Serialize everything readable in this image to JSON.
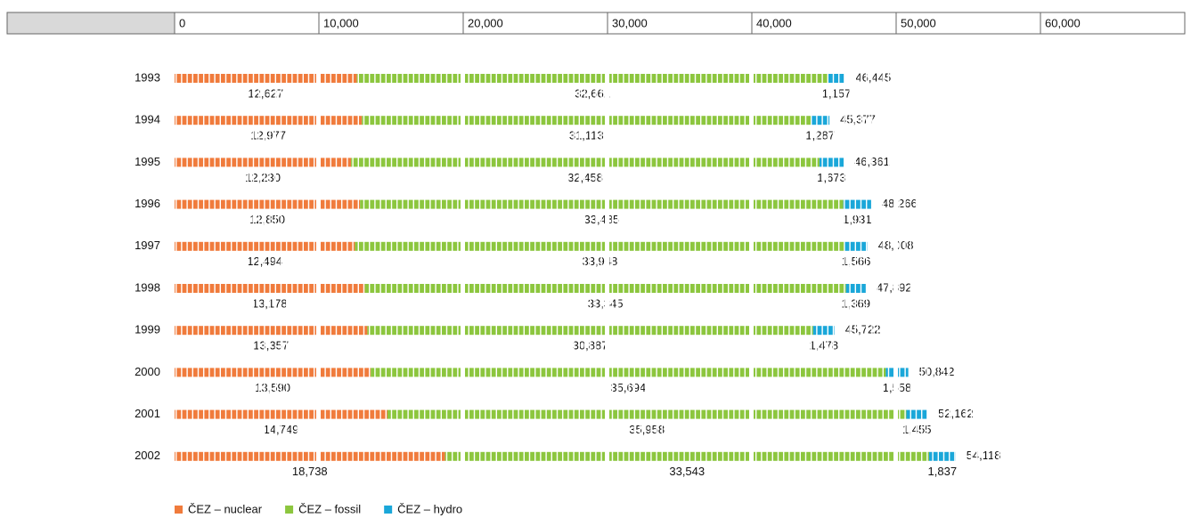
{
  "chart_data": {
    "type": "stacked-bar-horizontal",
    "categories": [
      "1993",
      "1994",
      "1995",
      "1996",
      "1997",
      "1998",
      "1999",
      "2000",
      "2001",
      "2002"
    ],
    "series": [
      {
        "name": "ČEZ – nuclear",
        "color": "#f07b3c",
        "values": [
          12627,
          12977,
          12230,
          12850,
          12494,
          13178,
          13357,
          13590,
          14749,
          18738
        ],
        "value_labels": [
          "12,627",
          "12,977",
          "12,230",
          "12,850",
          "12,494",
          "13,178",
          "13,357",
          "13,590",
          "14,749",
          "18,738"
        ]
      },
      {
        "name": "ČEZ – fossil",
        "color": "#8cc63e",
        "values": [
          32661,
          31113,
          32458,
          33485,
          33948,
          33345,
          30887,
          35694,
          35958,
          33543
        ],
        "value_labels": [
          "32,661",
          "31,113",
          "32,458",
          "33,485",
          "33,948",
          "33,345",
          "30,887",
          "35,694",
          "35,958",
          "33,543"
        ]
      },
      {
        "name": "ČEZ – hydro",
        "color": "#1aa7d9",
        "values": [
          1157,
          1287,
          1673,
          1931,
          1566,
          1369,
          1478,
          1558,
          1455,
          1837
        ],
        "value_labels": [
          "1,157",
          "1,287",
          "1,673",
          "1,931",
          "1,566",
          "1,369",
          "1,478",
          "1,558",
          "1,455",
          "1,837"
        ]
      }
    ],
    "totals": [
      46445,
      45377,
      46361,
      48266,
      48008,
      47892,
      45722,
      50842,
      52162,
      54118
    ],
    "total_labels": [
      "46,445",
      "45,377",
      "46,361",
      "48,266",
      "48,008",
      "47,892",
      "45,722",
      "50,842",
      "52,162",
      "54,118"
    ],
    "xlim": [
      0,
      70000
    ],
    "xticks": [
      0,
      {
        "value": 10000,
        "label": "10,000"
      },
      {
        "value": 20000,
        "label": "20,000"
      },
      {
        "value": 30000,
        "label": "30,000"
      },
      {
        "value": 40000,
        "label": "40,000"
      },
      {
        "value": 50000,
        "label": "50,000"
      },
      {
        "value": 60000,
        "label": "60,000"
      }
    ]
  }
}
